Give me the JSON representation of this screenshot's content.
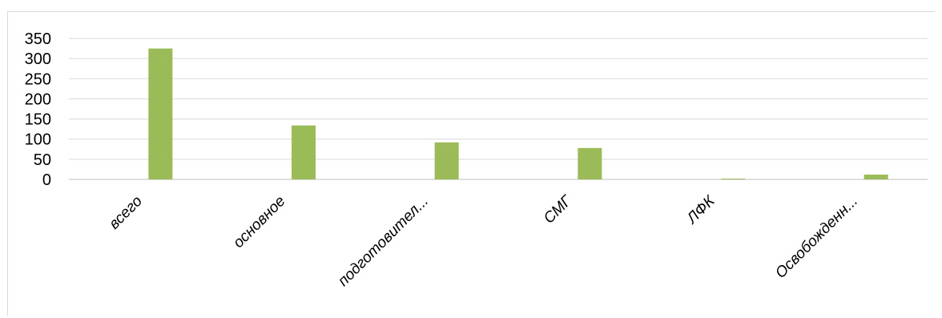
{
  "chart_data": {
    "type": "bar",
    "categories": [
      "всего",
      "основное",
      "подготовител...",
      "СМГ",
      "ЛФК",
      "Освобожденн..."
    ],
    "values": [
      325,
      134,
      92,
      78,
      2,
      12
    ],
    "ylim": [
      0,
      350
    ],
    "yticks": [
      0,
      50,
      100,
      150,
      200,
      250,
      300,
      350
    ],
    "grid": true,
    "bar_color": "#9bbb59",
    "grid_color": "#d9d9d9",
    "axis_color": "#bfbfbf"
  }
}
